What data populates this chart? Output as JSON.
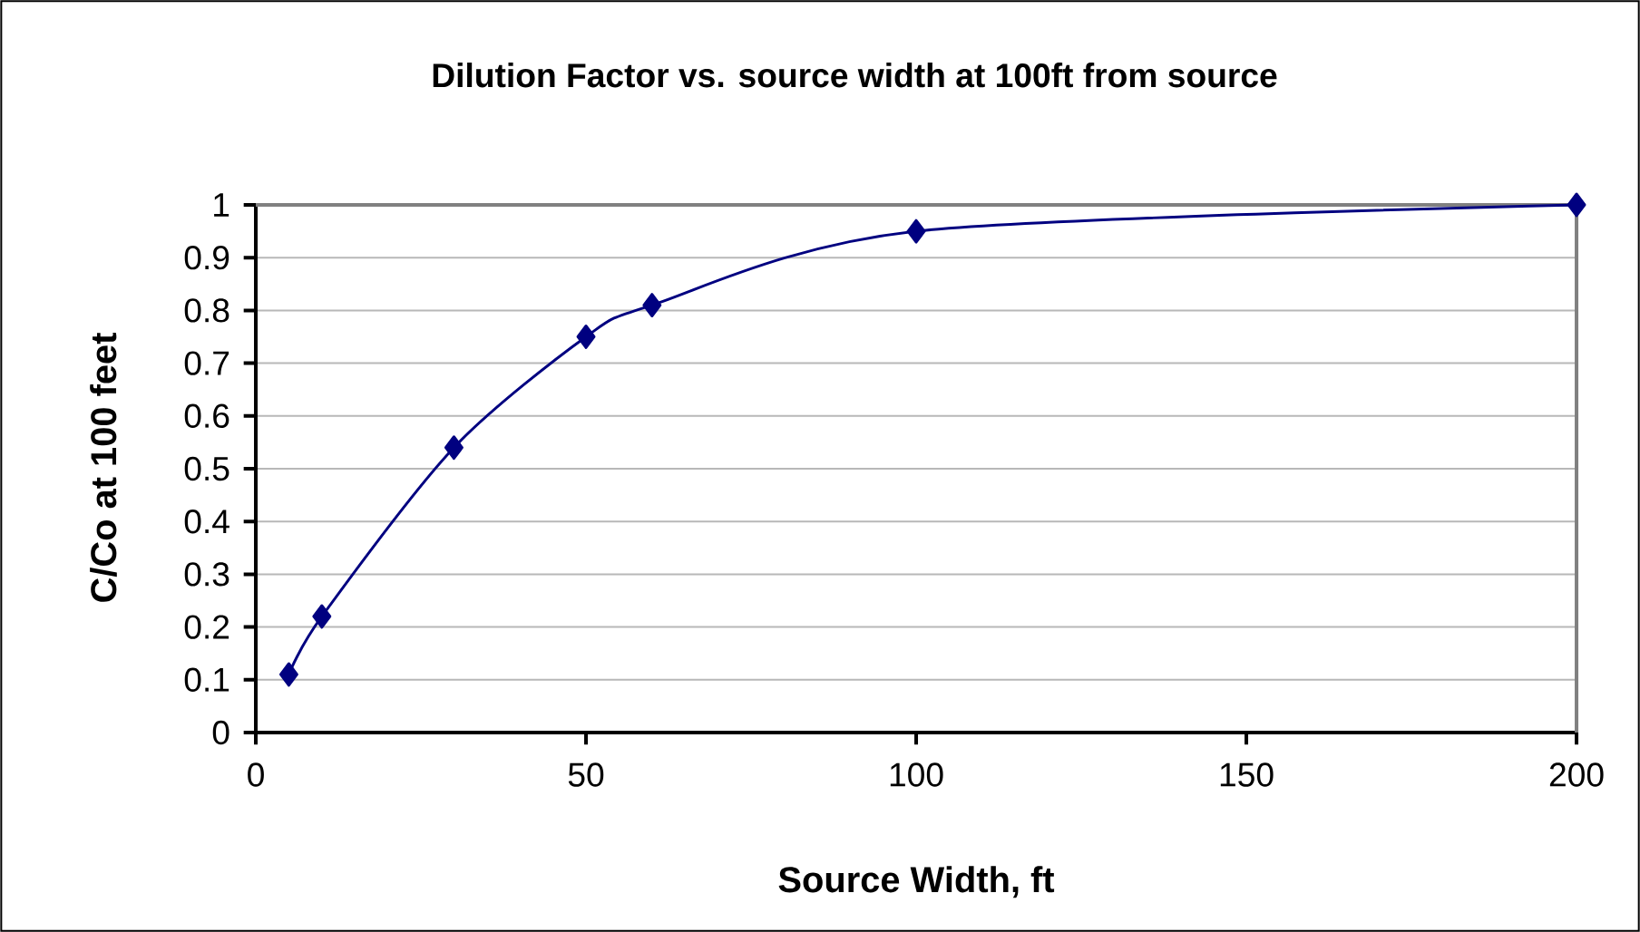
{
  "chart_data": {
    "type": "line",
    "title": "Dilution Factor vs. source width at 100ft from source",
    "xlabel": "Source Width, ft",
    "ylabel": "C/Co at 100 feet",
    "x": [
      5,
      10,
      30,
      50,
      60,
      100,
      200
    ],
    "series": [
      {
        "color": "#000080",
        "values": [
          0.11,
          0.22,
          0.54,
          0.75,
          0.81,
          0.95,
          1.0
        ]
      }
    ],
    "xlim": [
      0,
      200
    ],
    "ylim": [
      0,
      1
    ],
    "xticks": [
      0,
      50,
      100,
      150,
      200
    ],
    "yticks": [
      0,
      0.1,
      0.2,
      0.3,
      0.4,
      0.5,
      0.6,
      0.7,
      0.8,
      0.9,
      1
    ],
    "grid": "y",
    "marker": "diamond",
    "line_style": "solid"
  }
}
